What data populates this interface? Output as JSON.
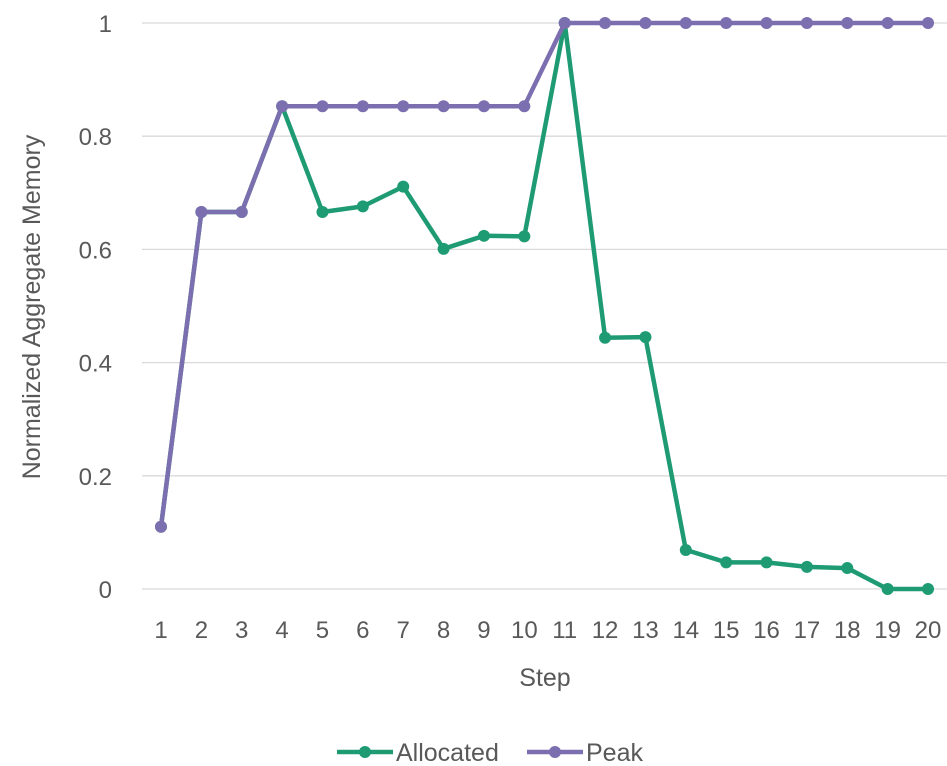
{
  "chart_data": {
    "type": "line",
    "title": "",
    "xlabel": "Step",
    "ylabel": "Normalized Aggregate Memory",
    "x": [
      1,
      2,
      3,
      4,
      5,
      6,
      7,
      8,
      9,
      10,
      11,
      12,
      13,
      14,
      15,
      16,
      17,
      18,
      19,
      20
    ],
    "ylim": [
      0,
      1
    ],
    "yticks": [
      "0",
      "0.2",
      "0.4",
      "0.6",
      "0.8",
      "1"
    ],
    "grid": "horizontal",
    "legend": "bottom",
    "series": [
      {
        "name": "Allocated",
        "color": "#1f9b74",
        "values": [
          0.11,
          0.666,
          0.666,
          0.853,
          0.666,
          0.676,
          0.711,
          0.601,
          0.624,
          0.623,
          1.0,
          0.444,
          0.445,
          0.069,
          0.047,
          0.047,
          0.039,
          0.037,
          0.0,
          0.0
        ]
      },
      {
        "name": "Peak",
        "color": "#7c6fb0",
        "values": [
          0.11,
          0.666,
          0.666,
          0.853,
          0.853,
          0.853,
          0.853,
          0.853,
          0.853,
          0.853,
          1.0,
          1.0,
          1.0,
          1.0,
          1.0,
          1.0,
          1.0,
          1.0,
          1.0,
          1.0
        ]
      }
    ]
  }
}
